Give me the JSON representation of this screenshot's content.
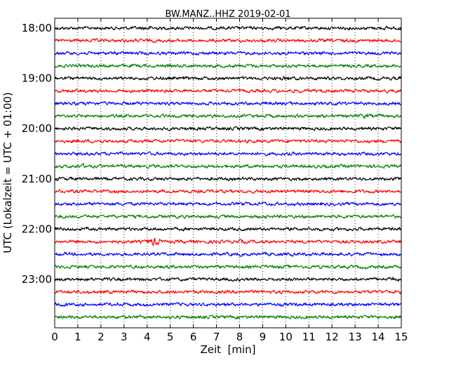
{
  "chart_data": {
    "type": "line",
    "title": "BW.MANZ..HHZ 2019-02-01",
    "xlabel": "Zeit  [min]",
    "ylabel": "UTC (Lokalzeit = UTC + 01:00)",
    "xlim": [
      0,
      15
    ],
    "x_ticks": [
      "0",
      "1",
      "2",
      "3",
      "4",
      "5",
      "6",
      "7",
      "8",
      "9",
      "10",
      "11",
      "12",
      "13",
      "14",
      "15"
    ],
    "y_tick_labels": [
      "18:00",
      "19:00",
      "20:00",
      "21:00",
      "22:00",
      "23:00"
    ],
    "grid": "vertical dotted lines at each minute",
    "trace_start_times": [
      "18:00",
      "18:15",
      "18:30",
      "18:45",
      "19:00",
      "19:15",
      "19:30",
      "19:45",
      "20:00",
      "20:15",
      "20:30",
      "20:45",
      "21:00",
      "21:15",
      "21:30",
      "21:45",
      "22:00",
      "22:15",
      "22:30",
      "22:45",
      "23:00",
      "23:15",
      "23:30",
      "23:45"
    ],
    "trace_colors": [
      "#000000",
      "#ff0000",
      "#0000ff",
      "#008000"
    ],
    "series": [
      {
        "start": "18:00",
        "color": "#000000",
        "noise_level": 1.0,
        "events": [
          {
            "x": 4.0,
            "amp": 1.5
          }
        ]
      },
      {
        "start": "18:15",
        "color": "#ff0000",
        "noise_level": 1.0,
        "events": []
      },
      {
        "start": "18:30",
        "color": "#0000ff",
        "noise_level": 1.0,
        "events": []
      },
      {
        "start": "18:45",
        "color": "#008000",
        "noise_level": 1.0,
        "events": []
      },
      {
        "start": "19:00",
        "color": "#000000",
        "noise_level": 1.0,
        "events": [
          {
            "x": 10.0,
            "amp": 1.5
          }
        ]
      },
      {
        "start": "19:15",
        "color": "#ff0000",
        "noise_level": 1.0,
        "events": []
      },
      {
        "start": "19:30",
        "color": "#0000ff",
        "noise_level": 1.0,
        "events": []
      },
      {
        "start": "19:45",
        "color": "#008000",
        "noise_level": 1.0,
        "events": [
          {
            "x": 13.5,
            "amp": 1.5
          }
        ]
      },
      {
        "start": "20:00",
        "color": "#000000",
        "noise_level": 1.0,
        "events": []
      },
      {
        "start": "20:15",
        "color": "#ff0000",
        "noise_level": 1.0,
        "events": []
      },
      {
        "start": "20:30",
        "color": "#0000ff",
        "noise_level": 1.0,
        "events": []
      },
      {
        "start": "20:45",
        "color": "#008000",
        "noise_level": 1.0,
        "events": [
          {
            "x": 1.2,
            "amp": 1.5
          }
        ]
      },
      {
        "start": "21:00",
        "color": "#000000",
        "noise_level": 1.0,
        "events": []
      },
      {
        "start": "21:15",
        "color": "#ff0000",
        "noise_level": 1.0,
        "events": []
      },
      {
        "start": "21:30",
        "color": "#0000ff",
        "noise_level": 1.0,
        "events": [
          {
            "x": 9.0,
            "amp": 1.3
          }
        ]
      },
      {
        "start": "21:45",
        "color": "#008000",
        "noise_level": 1.0,
        "events": []
      },
      {
        "start": "22:00",
        "color": "#000000",
        "noise_level": 1.0,
        "events": []
      },
      {
        "start": "22:15",
        "color": "#ff0000",
        "noise_level": 1.0,
        "events": [
          {
            "x": 4.3,
            "amp": 3.0
          },
          {
            "x": 8.0,
            "amp": 1.5
          }
        ]
      },
      {
        "start": "22:30",
        "color": "#0000ff",
        "noise_level": 1.0,
        "events": []
      },
      {
        "start": "22:45",
        "color": "#008000",
        "noise_level": 1.0,
        "events": []
      },
      {
        "start": "23:00",
        "color": "#000000",
        "noise_level": 1.0,
        "events": [
          {
            "x": 14.5,
            "amp": 1.5
          }
        ]
      },
      {
        "start": "23:15",
        "color": "#ff0000",
        "noise_level": 1.0,
        "events": []
      },
      {
        "start": "23:30",
        "color": "#0000ff",
        "noise_level": 1.0,
        "events": [
          {
            "x": 0.3,
            "amp": 1.5
          }
        ]
      },
      {
        "start": "23:45",
        "color": "#008000",
        "noise_level": 1.0,
        "events": []
      }
    ]
  }
}
